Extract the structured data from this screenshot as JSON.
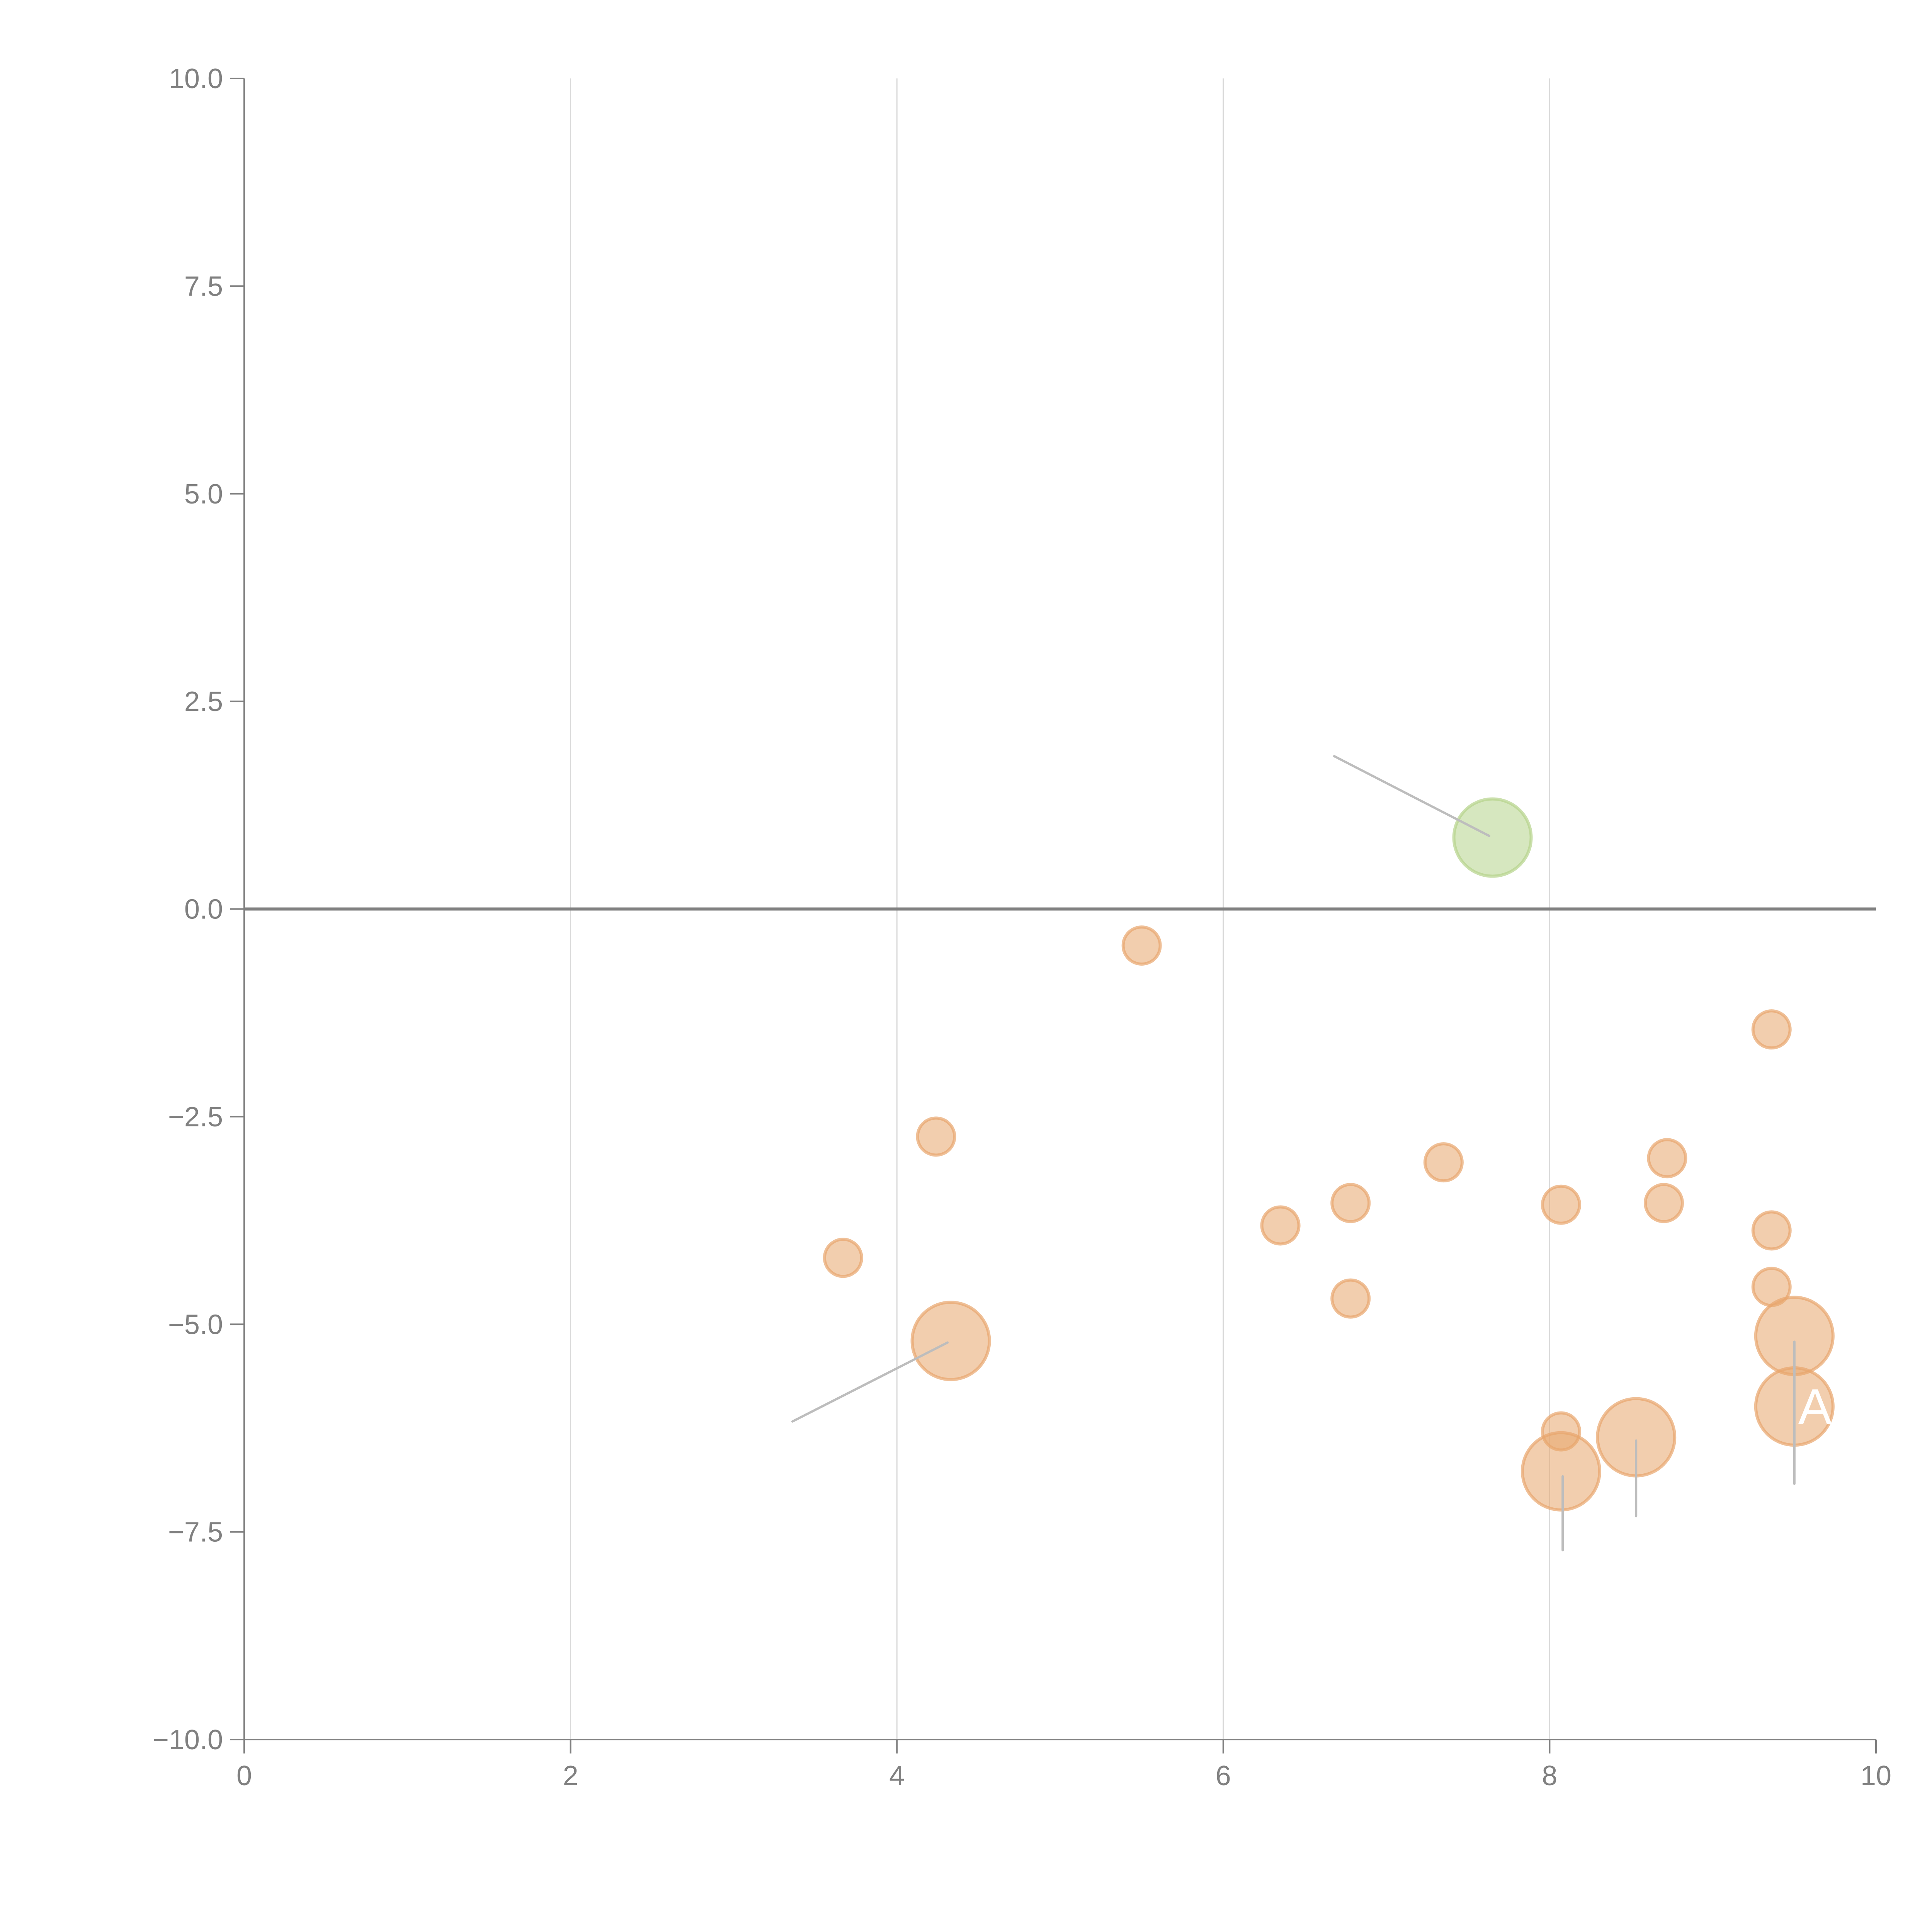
{
  "chart_data": {
    "type": "scatter",
    "title": "",
    "xlabel": "",
    "ylabel": "",
    "xlim": [
      0,
      10
    ],
    "ylim": [
      -10,
      10
    ],
    "grid": "vertical",
    "xticks": [
      0,
      2,
      4,
      6,
      8,
      10
    ],
    "xtick_labels": [
      "0",
      "2",
      "4",
      "6",
      "8",
      "10"
    ],
    "yticks": [
      10,
      7.5,
      5,
      2.5,
      0,
      -2.5,
      -5,
      -7.5,
      -10
    ],
    "ytick_labels": [
      "10.0",
      "7.5",
      "5.0",
      "2.5",
      "0.0",
      "−2.5",
      "−5.0",
      "−7.5",
      "−10.0"
    ],
    "colors": {
      "positive": "#b5d38a",
      "negative": "#e8a56c"
    },
    "points": [
      {
        "x": 7.65,
        "y": 0.86,
        "size": "large",
        "group": "positive"
      },
      {
        "x": 5.5,
        "y": -0.44,
        "size": "small",
        "group": "negative"
      },
      {
        "x": 9.36,
        "y": -1.45,
        "size": "small",
        "group": "negative"
      },
      {
        "x": 4.24,
        "y": -2.74,
        "size": "small",
        "group": "negative"
      },
      {
        "x": 7.35,
        "y": -3.05,
        "size": "small",
        "group": "negative"
      },
      {
        "x": 8.72,
        "y": -3.0,
        "size": "small",
        "group": "negative"
      },
      {
        "x": 6.78,
        "y": -3.54,
        "size": "small",
        "group": "negative"
      },
      {
        "x": 8.07,
        "y": -3.56,
        "size": "small",
        "group": "negative"
      },
      {
        "x": 8.7,
        "y": -3.54,
        "size": "small",
        "group": "negative"
      },
      {
        "x": 6.35,
        "y": -3.81,
        "size": "small",
        "group": "negative"
      },
      {
        "x": 9.36,
        "y": -3.87,
        "size": "small",
        "group": "negative"
      },
      {
        "x": 3.67,
        "y": -4.2,
        "size": "small",
        "group": "negative"
      },
      {
        "x": 6.78,
        "y": -4.69,
        "size": "small",
        "group": "negative"
      },
      {
        "x": 9.36,
        "y": -4.55,
        "size": "small",
        "group": "negative"
      },
      {
        "x": 4.33,
        "y": -5.2,
        "size": "large",
        "group": "negative"
      },
      {
        "x": 9.5,
        "y": -5.14,
        "size": "large",
        "group": "negative"
      },
      {
        "x": 9.5,
        "y": -5.99,
        "size": "large",
        "group": "negative",
        "label": "A"
      },
      {
        "x": 8.07,
        "y": -6.29,
        "size": "small",
        "group": "negative"
      },
      {
        "x": 8.53,
        "y": -6.36,
        "size": "large",
        "group": "negative"
      },
      {
        "x": 8.07,
        "y": -6.77,
        "size": "large",
        "group": "negative"
      }
    ],
    "leaders": [
      {
        "from": [
          7.63,
          0.88
        ],
        "to": [
          6.68,
          1.84
        ]
      },
      {
        "from": [
          4.31,
          -5.22
        ],
        "to": [
          3.36,
          -6.17
        ]
      },
      {
        "from": [
          9.5,
          -5.21
        ],
        "to": [
          9.5,
          -6.92
        ]
      },
      {
        "from": [
          8.53,
          -6.4
        ],
        "to": [
          8.53,
          -7.31
        ]
      },
      {
        "from": [
          8.08,
          -6.83
        ],
        "to": [
          8.08,
          -7.72
        ]
      }
    ]
  }
}
